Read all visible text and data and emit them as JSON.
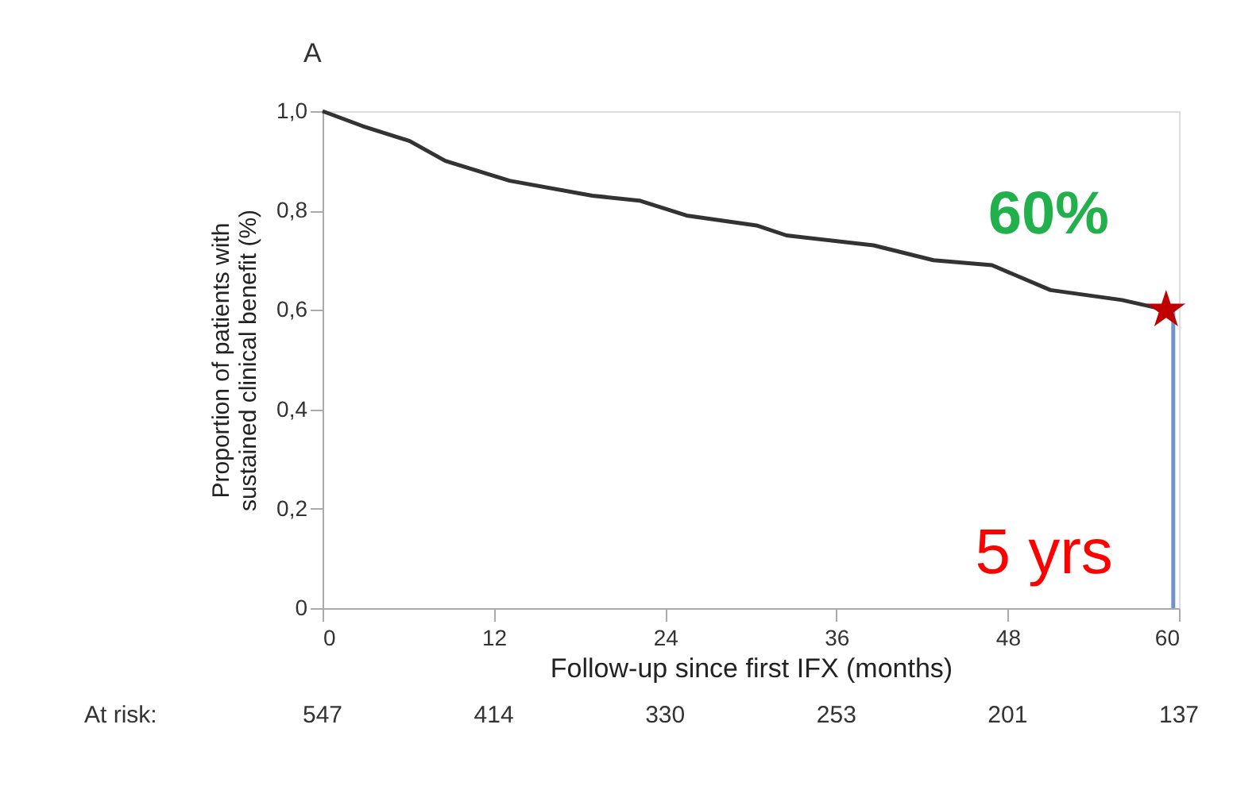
{
  "chart_data": {
    "type": "line",
    "xlabel": "Follow-up since first IFX (months)",
    "ylabel": "Proportion of patients with\nsustained clinical benefit (%)",
    "xlim": [
      0,
      60
    ],
    "xticks": [
      0,
      12,
      24,
      36,
      48,
      60
    ],
    "ylim": [
      0,
      1.0
    ],
    "yticks": [
      {
        "value": 0,
        "label": "0"
      },
      {
        "value": 0.2,
        "label": "0,2"
      },
      {
        "value": 0.4,
        "label": "0,4"
      },
      {
        "value": 0.6,
        "label": "0,6"
      },
      {
        "value": 0.8,
        "label": "0,8"
      },
      {
        "value": 1.0,
        "label": "1,0"
      }
    ],
    "series": [
      {
        "color": "#333333",
        "x": [
          0,
          2.8,
          6.1,
          8.6,
          13.1,
          18.9,
          22.2,
          25.5,
          30.4,
          32.5,
          38.6,
          42.8,
          46.9,
          51,
          56,
          59.1
        ],
        "values": [
          1.0,
          0.97,
          0.94,
          0.9,
          0.86,
          0.83,
          0.82,
          0.79,
          0.77,
          0.75,
          0.73,
          0.7,
          0.69,
          0.64,
          0.62,
          0.6
        ]
      },
      {
        "type": "scatter",
        "color": "#c00000",
        "marker": "star",
        "x": [
          59.1
        ],
        "values": [
          0.6
        ]
      }
    ],
    "ref_lines": [
      {
        "axis": "x",
        "value": 59.6,
        "label": "5 yrs",
        "color": "#6f95c8"
      }
    ],
    "annotations": [
      "A",
      {
        "text": "60%",
        "x": 59.1,
        "y": 0.6
      },
      "At risk:",
      "547",
      "414",
      "330",
      "253",
      "201",
      "137"
    ],
    "grid": false
  }
}
